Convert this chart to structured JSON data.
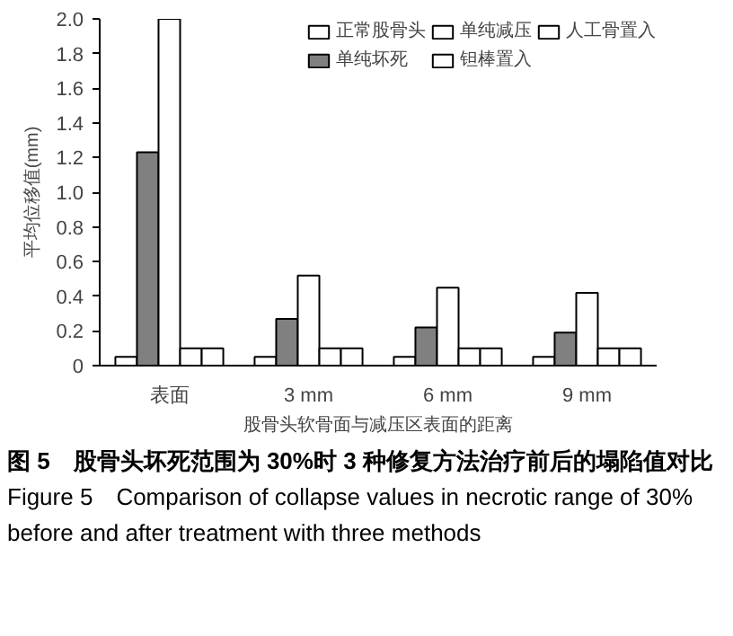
{
  "chart_data": {
    "type": "bar",
    "categories": [
      "表面",
      "3 mm",
      "6 mm",
      "9 mm"
    ],
    "series": [
      {
        "name": "正常股骨头",
        "color": "#ffffff",
        "values": [
          0.05,
          0.05,
          0.05,
          0.05
        ]
      },
      {
        "name": "单纯坏死",
        "color": "#808080",
        "values": [
          1.23,
          0.27,
          0.22,
          0.19
        ]
      },
      {
        "name": "单纯减压",
        "color": "#ffffff",
        "values": [
          2.0,
          0.52,
          0.45,
          0.42
        ]
      },
      {
        "name": "钽棒置入",
        "color": "#ffffff",
        "values": [
          0.1,
          0.1,
          0.1,
          0.1
        ]
      },
      {
        "name": "人工骨置入",
        "color": "#ffffff",
        "values": [
          0.1,
          0.1,
          0.1,
          0.1
        ]
      }
    ],
    "xlabel": "股骨头软骨面与减压区表面的距离",
    "ylabel": "平均位移值(mm)",
    "ylim": [
      0,
      2.0
    ],
    "yticks": [
      0,
      0.2,
      0.4,
      0.6,
      0.8,
      {
        "value": 1.0,
        "label": "1.0"
      },
      1.2,
      1.4,
      1.6,
      1.8,
      {
        "value": 2.0,
        "label": "2.0"
      }
    ],
    "grid": false,
    "legend": "top right",
    "annotations": [
      "图 5　股骨头坏死范围为 30%时 3 种修复方法治疗前后的塌陷值对比",
      "Figure 5　Comparison of collapse values in necrotic range of 30% before and after treatment with three methods"
    ]
  }
}
